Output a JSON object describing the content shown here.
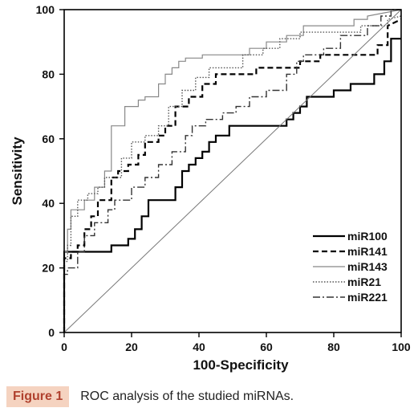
{
  "chart_data": {
    "type": "line",
    "title": "",
    "xlabel": "100-Specificity",
    "ylabel": "Sensitivity",
    "xlim": [
      0,
      100
    ],
    "ylim": [
      0,
      100
    ],
    "xticks": [
      "0",
      "20",
      "40",
      "60",
      "80",
      "100"
    ],
    "yticks": [
      "0",
      "20",
      "40",
      "60",
      "80",
      "100"
    ],
    "grid": false,
    "legend_position": "bottom-right",
    "series": [
      {
        "name": "miR100",
        "style": "solid-thick",
        "color": "#000000",
        "x": [
          0,
          0,
          0,
          14,
          14,
          19,
          19,
          21,
          21,
          23,
          23,
          25,
          25,
          33,
          33,
          35,
          35,
          37,
          37,
          39,
          39,
          41,
          41,
          43,
          43,
          45,
          45,
          49,
          49,
          66,
          66,
          68,
          68,
          70,
          70,
          72,
          72,
          80,
          80,
          85,
          85,
          92,
          92,
          95,
          95,
          97,
          97,
          100
        ],
        "y": [
          0,
          0,
          25,
          25,
          27,
          27,
          29,
          29,
          32,
          32,
          36,
          36,
          41,
          41,
          45,
          45,
          50,
          50,
          52,
          52,
          54,
          54,
          56,
          56,
          59,
          59,
          61,
          61,
          64,
          64,
          66,
          66,
          68,
          68,
          70,
          70,
          73,
          73,
          75,
          75,
          77,
          77,
          80,
          80,
          84,
          84,
          91,
          91
        ]
      },
      {
        "name": "miR141",
        "style": "dashed",
        "color": "#000000",
        "x": [
          0,
          0,
          0,
          2,
          2,
          4,
          4,
          6,
          6,
          8,
          8,
          10,
          10,
          14,
          14,
          16,
          16,
          19,
          19,
          22,
          22,
          24,
          24,
          28,
          28,
          30,
          30,
          33,
          33,
          37,
          37,
          41,
          41,
          45,
          45,
          57,
          57,
          70,
          70,
          76,
          76,
          86,
          86,
          93,
          93,
          96,
          96,
          100
        ],
        "y": [
          0,
          0,
          23,
          23,
          25,
          25,
          27,
          27,
          32,
          32,
          36,
          36,
          41,
          41,
          48,
          48,
          50,
          50,
          52,
          52,
          55,
          55,
          59,
          59,
          61,
          61,
          64,
          64,
          70,
          70,
          73,
          73,
          77,
          77,
          80,
          80,
          82,
          82,
          84,
          84,
          86,
          86,
          86,
          86,
          89,
          89,
          95,
          97
        ]
      },
      {
        "name": "miR143",
        "style": "solid-thin",
        "color": "#888888",
        "x": [
          0,
          0,
          0,
          1,
          1,
          2,
          2,
          6,
          6,
          9,
          9,
          12,
          12,
          14,
          14,
          18,
          18,
          22,
          22,
          24,
          24,
          28,
          28,
          30,
          30,
          32,
          32,
          34,
          34,
          36,
          36,
          41,
          41,
          45,
          45,
          55,
          55,
          60,
          60,
          66,
          66,
          71,
          71,
          86,
          86,
          90,
          90,
          100
        ],
        "y": [
          0,
          0,
          25,
          25,
          32,
          32,
          38,
          38,
          41,
          41,
          45,
          45,
          50,
          50,
          64,
          64,
          70,
          70,
          72,
          72,
          73,
          73,
          77,
          77,
          80,
          80,
          82,
          82,
          84,
          84,
          85,
          85,
          86,
          86,
          86,
          86,
          88,
          88,
          90,
          90,
          92,
          92,
          95,
          95,
          97,
          97,
          98,
          100
        ]
      },
      {
        "name": "miR21",
        "style": "dotted",
        "color": "#555555",
        "x": [
          0,
          0,
          0,
          1,
          1,
          2,
          2,
          4,
          4,
          7,
          7,
          10,
          10,
          12,
          12,
          17,
          17,
          20,
          20,
          24,
          24,
          28,
          28,
          31,
          31,
          35,
          35,
          39,
          39,
          43,
          43,
          53,
          53,
          59,
          59,
          64,
          64,
          70,
          70,
          88,
          88,
          96,
          96,
          100
        ],
        "y": [
          0,
          0,
          22,
          22,
          27,
          27,
          36,
          36,
          41,
          41,
          43,
          43,
          45,
          45,
          48,
          48,
          54,
          54,
          59,
          59,
          61,
          61,
          64,
          64,
          70,
          70,
          75,
          75,
          79,
          79,
          82,
          82,
          86,
          86,
          88,
          88,
          91,
          91,
          93,
          93,
          95,
          95,
          97,
          98
        ]
      },
      {
        "name": "miR221",
        "style": "dashdot",
        "color": "#333333",
        "x": [
          0,
          0,
          0,
          1,
          1,
          4,
          4,
          6,
          6,
          9,
          9,
          13,
          13,
          15,
          15,
          20,
          20,
          24,
          24,
          28,
          28,
          32,
          32,
          36,
          36,
          38,
          38,
          42,
          42,
          47,
          47,
          51,
          51,
          55,
          55,
          60,
          60,
          66,
          66,
          69,
          69,
          71,
          71,
          77,
          77,
          82,
          82,
          90,
          90,
          94,
          94,
          97,
          97,
          100
        ],
        "y": [
          0,
          0,
          18,
          18,
          20,
          20,
          25,
          25,
          30,
          30,
          34,
          34,
          38,
          38,
          41,
          41,
          45,
          45,
          48,
          48,
          52,
          52,
          56,
          56,
          61,
          61,
          64,
          64,
          66,
          66,
          68,
          68,
          70,
          70,
          73,
          73,
          75,
          75,
          80,
          80,
          84,
          84,
          86,
          86,
          88,
          88,
          92,
          92,
          95,
          95,
          98,
          98,
          100,
          100
        ]
      },
      {
        "name": "",
        "style": "reference",
        "color": "#777777",
        "x": [
          0,
          100
        ],
        "y": [
          0,
          100
        ]
      }
    ]
  },
  "caption": {
    "label": "Figure 1",
    "text": "ROC analysis of the studied miRNAs."
  }
}
